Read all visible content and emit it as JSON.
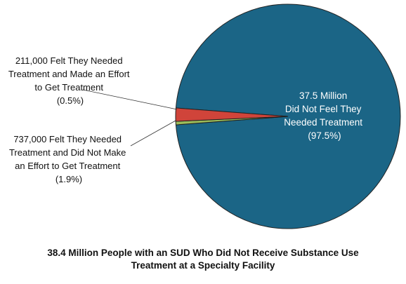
{
  "chart_data": {
    "type": "pie",
    "caption_lines": [
      "38.4 Million People with an SUD Who Did Not Receive Substance Use",
      "Treatment at a Specialty Facility"
    ],
    "slices": [
      {
        "label_lines": [
          "37.5 Million",
          "Did Not Feel They",
          "Needed Treatment",
          "(97.5%)"
        ],
        "value": 97.5,
        "color": "#1b6586"
      },
      {
        "label_lines": [
          "211,000 Felt They Needed",
          "Treatment and Made an Effort",
          "to Get Treatment",
          "(0.5%)"
        ],
        "value": 0.5,
        "color": "#9bbb59"
      },
      {
        "label_lines": [
          "737,000 Felt They Needed",
          "Treatment and Did Not Make",
          "an Effort to Get Treatment",
          "(1.9%)"
        ],
        "value": 1.9,
        "color": "#d0443a"
      }
    ]
  }
}
